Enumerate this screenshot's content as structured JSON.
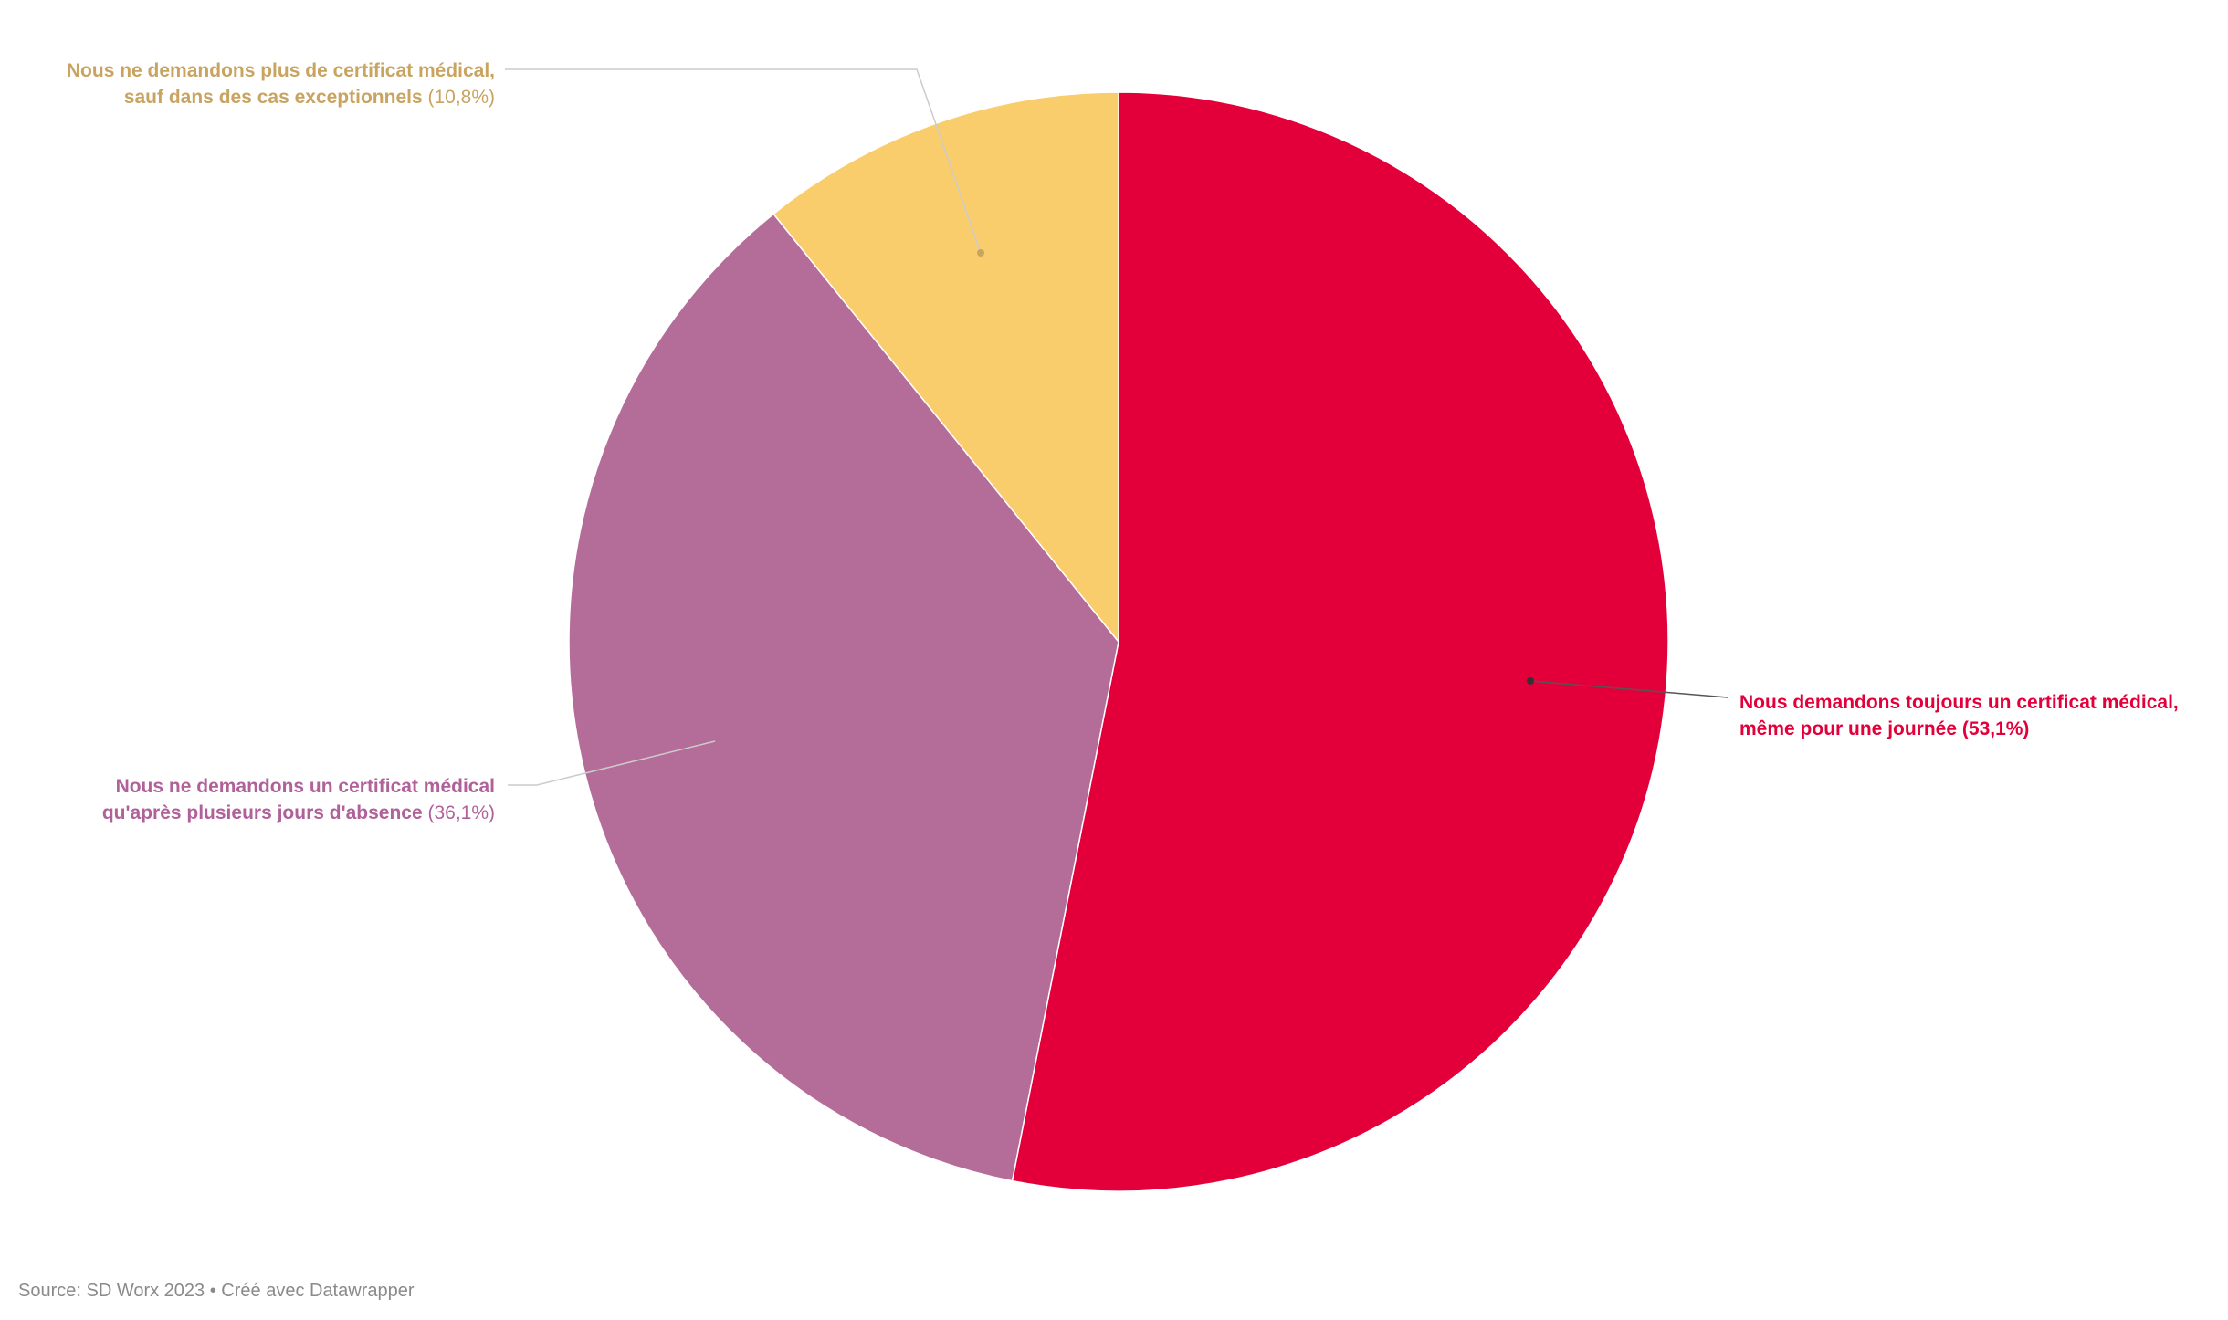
{
  "chart_data": {
    "type": "pie",
    "slices": [
      {
        "line1": "Nous demandons toujours un certificat médical,",
        "line2": "même pour une journée",
        "value": 53.1,
        "value_label": "(53,1%)",
        "color": "#e3003a"
      },
      {
        "line1": "Nous ne demandons un certificat médical",
        "line2": "qu'après plusieurs jours d'absence",
        "value": 36.1,
        "value_label": "(36,1%)",
        "color": "#b46c99",
        "label_color": "#b0619a"
      },
      {
        "line1": "Nous ne demandons plus de certificat médical,",
        "line2": "sauf dans des cas exceptionnels",
        "value": 10.8,
        "value_label": "(10,8%)",
        "color": "#f9cd6b",
        "label_color": "#c9a461"
      }
    ]
  },
  "footer": {
    "source": "Source: SD Worx 2023 • Créé avec Datawrapper"
  }
}
